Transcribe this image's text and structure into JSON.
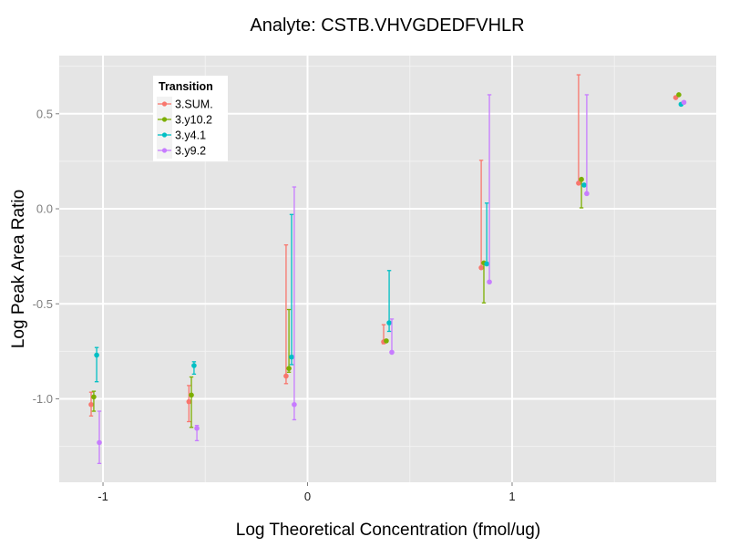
{
  "chart_data": {
    "type": "scatter",
    "title": "Analyte: CSTB.VHVGDEDFVHLR",
    "xlabel": "Log Theoretical Concentration (fmol/ug)",
    "ylabel": "Log Peak Area Ratio",
    "xlim": [
      -1.214,
      1.998
    ],
    "ylim": [
      -1.439,
      0.806
    ],
    "x_ticks": [
      -1,
      0,
      1
    ],
    "x_tick_labels": [
      "-1",
      "0",
      "1"
    ],
    "y_ticks": [
      0.5,
      0.0,
      -0.5,
      -1.0
    ],
    "y_tick_labels": [
      "0.5",
      "0.0",
      "-0.5",
      "-1.0"
    ],
    "x_minor_ticks": [
      -0.5,
      0.5,
      1.5
    ],
    "y_minor_ticks": [
      0.75,
      0.25,
      -0.25,
      -0.75,
      -1.25
    ],
    "grid": true,
    "legend": {
      "title": "Transition",
      "placement": "top-left inside",
      "entries": [
        "3.SUM.",
        "3.y10.2",
        "3.y4.1",
        "3.y9.2"
      ]
    },
    "series": [
      {
        "name": "3.SUM.",
        "color": "#F8766D",
        "points": [
          {
            "x": -1.058,
            "y": -1.03,
            "ymin": -1.09,
            "ymax": -0.965
          },
          {
            "x": -0.58,
            "y": -1.015,
            "ymin": -1.12,
            "ymax": -0.93
          },
          {
            "x": -0.105,
            "y": -0.88,
            "ymin": -0.92,
            "ymax": -0.19
          },
          {
            "x": 0.372,
            "y": -0.7,
            "ymin": -0.71,
            "ymax": -0.61
          },
          {
            "x": 0.849,
            "y": -0.31,
            "ymin": -0.31,
            "ymax": 0.255
          },
          {
            "x": 1.325,
            "y": 0.135,
            "ymin": 0.135,
            "ymax": 0.705
          },
          {
            "x": 1.8,
            "y": 0.585,
            "ymin": 0.585,
            "ymax": 0.585
          }
        ]
      },
      {
        "name": "3.y10.2",
        "color": "#7CAE00",
        "points": [
          {
            "x": -1.045,
            "y": -0.99,
            "ymin": -1.065,
            "ymax": -0.96
          },
          {
            "x": -0.568,
            "y": -0.98,
            "ymin": -1.15,
            "ymax": -0.885
          },
          {
            "x": -0.091,
            "y": -0.84,
            "ymin": -0.86,
            "ymax": -0.53
          },
          {
            "x": 0.385,
            "y": -0.695,
            "ymin": -0.7,
            "ymax": -0.69
          },
          {
            "x": 0.862,
            "y": -0.285,
            "ymin": -0.495,
            "ymax": -0.285
          },
          {
            "x": 1.339,
            "y": 0.155,
            "ymin": 0.005,
            "ymax": 0.155
          },
          {
            "x": 1.815,
            "y": 0.6,
            "ymin": 0.6,
            "ymax": 0.6
          }
        ]
      },
      {
        "name": "3.y4.1",
        "color": "#00BFC4",
        "points": [
          {
            "x": -1.031,
            "y": -0.77,
            "ymin": -0.91,
            "ymax": -0.73
          },
          {
            "x": -0.555,
            "y": -0.825,
            "ymin": -0.87,
            "ymax": -0.805
          },
          {
            "x": -0.078,
            "y": -0.78,
            "ymin": -0.82,
            "ymax": -0.03
          },
          {
            "x": 0.399,
            "y": -0.6,
            "ymin": -0.645,
            "ymax": -0.325
          },
          {
            "x": 0.876,
            "y": -0.29,
            "ymin": -0.29,
            "ymax": 0.03
          },
          {
            "x": 1.352,
            "y": 0.125,
            "ymin": 0.12,
            "ymax": 0.13
          },
          {
            "x": 1.826,
            "y": 0.55,
            "ymin": 0.55,
            "ymax": 0.55
          }
        ]
      },
      {
        "name": "3.y9.2",
        "color": "#C77CFF",
        "points": [
          {
            "x": -1.018,
            "y": -1.23,
            "ymin": -1.34,
            "ymax": -1.065
          },
          {
            "x": -0.541,
            "y": -1.155,
            "ymin": -1.22,
            "ymax": -1.14
          },
          {
            "x": -0.065,
            "y": -1.03,
            "ymin": -1.11,
            "ymax": 0.115
          },
          {
            "x": 0.412,
            "y": -0.755,
            "ymin": -0.755,
            "ymax": -0.58
          },
          {
            "x": 0.889,
            "y": -0.385,
            "ymin": -0.385,
            "ymax": 0.6
          },
          {
            "x": 1.365,
            "y": 0.08,
            "ymin": 0.08,
            "ymax": 0.6
          },
          {
            "x": 1.84,
            "y": 0.56,
            "ymin": 0.56,
            "ymax": 0.56
          }
        ]
      }
    ]
  }
}
